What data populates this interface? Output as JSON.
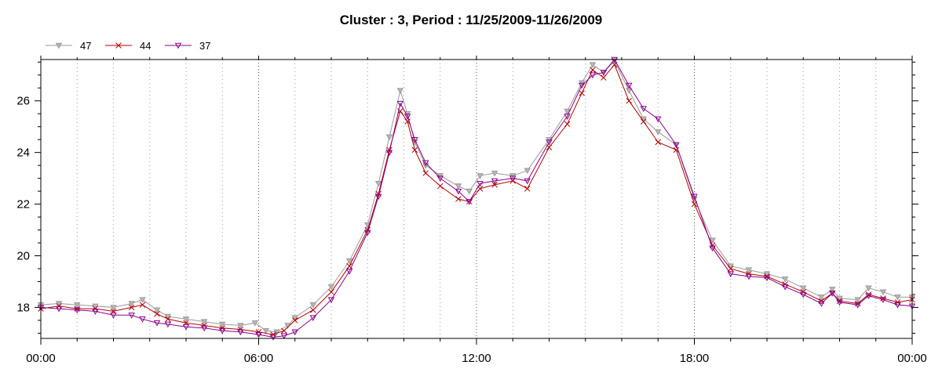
{
  "chart_data": {
    "type": "line",
    "title": "Cluster : 3, Period : 11/25/2009-11/26/2009",
    "xlabel": "",
    "ylabel": "",
    "x_unit": "hours from 00:00",
    "xlim": [
      0,
      24
    ],
    "ylim": [
      16.8,
      27.6
    ],
    "x_ticks": [
      {
        "value": 0,
        "label": "00:00"
      },
      {
        "value": 6,
        "label": "06:00"
      },
      {
        "value": 12,
        "label": "12:00"
      },
      {
        "value": 18,
        "label": "18:00"
      },
      {
        "value": 24,
        "label": "00:00"
      }
    ],
    "y_ticks": [
      {
        "value": 18,
        "label": "18"
      },
      {
        "value": 20,
        "label": "20"
      },
      {
        "value": 22,
        "label": "22"
      },
      {
        "value": 24,
        "label": "24"
      },
      {
        "value": 26,
        "label": "26"
      }
    ],
    "grid": "dotted vertical",
    "legend_position": "top-left",
    "series": [
      {
        "name": "47",
        "color": "#9a9a9a",
        "marker": "triangle-down-filled",
        "points": [
          [
            0,
            18.1
          ],
          [
            0.5,
            18.15
          ],
          [
            1,
            18.1
          ],
          [
            1.5,
            18.05
          ],
          [
            2,
            18.0
          ],
          [
            2.5,
            18.15
          ],
          [
            2.8,
            18.3
          ],
          [
            3.2,
            17.9
          ],
          [
            3.5,
            17.65
          ],
          [
            4,
            17.55
          ],
          [
            4.5,
            17.45
          ],
          [
            5,
            17.35
          ],
          [
            5.5,
            17.3
          ],
          [
            5.9,
            17.4
          ],
          [
            6.2,
            17.1
          ],
          [
            6.5,
            17.05
          ],
          [
            6.8,
            17.3
          ],
          [
            7,
            17.6
          ],
          [
            7.5,
            18.1
          ],
          [
            8,
            18.8
          ],
          [
            8.5,
            19.8
          ],
          [
            9,
            21.2
          ],
          [
            9.3,
            22.8
          ],
          [
            9.6,
            24.6
          ],
          [
            9.9,
            26.4
          ],
          [
            10.1,
            25.5
          ],
          [
            10.3,
            24.4
          ],
          [
            10.6,
            23.5
          ],
          [
            11,
            23.1
          ],
          [
            11.5,
            22.7
          ],
          [
            11.8,
            22.5
          ],
          [
            12.1,
            23.1
          ],
          [
            12.5,
            23.2
          ],
          [
            13,
            23.1
          ],
          [
            13.4,
            23.3
          ],
          [
            14,
            24.5
          ],
          [
            14.5,
            25.6
          ],
          [
            14.9,
            26.7
          ],
          [
            15.2,
            27.4
          ],
          [
            15.5,
            27.1
          ],
          [
            15.8,
            27.55
          ],
          [
            16.2,
            26.4
          ],
          [
            16.6,
            25.3
          ],
          [
            17.0,
            24.8
          ],
          [
            17.5,
            24.3
          ],
          [
            18,
            22.2
          ],
          [
            18.5,
            20.6
          ],
          [
            19,
            19.6
          ],
          [
            19.5,
            19.45
          ],
          [
            20,
            19.3
          ],
          [
            20.5,
            19.1
          ],
          [
            21,
            18.75
          ],
          [
            21.5,
            18.4
          ],
          [
            21.8,
            18.7
          ],
          [
            22,
            18.35
          ],
          [
            22.5,
            18.3
          ],
          [
            22.8,
            18.75
          ],
          [
            23.2,
            18.6
          ],
          [
            23.6,
            18.4
          ],
          [
            24,
            18.4
          ]
        ]
      },
      {
        "name": "44",
        "color": "#b30000",
        "marker": "x",
        "points": [
          [
            0,
            17.95
          ],
          [
            0.5,
            18.05
          ],
          [
            1,
            17.95
          ],
          [
            1.5,
            17.95
          ],
          [
            2,
            17.85
          ],
          [
            2.5,
            18.0
          ],
          [
            2.8,
            18.1
          ],
          [
            3.2,
            17.75
          ],
          [
            3.5,
            17.55
          ],
          [
            4,
            17.4
          ],
          [
            4.5,
            17.3
          ],
          [
            5,
            17.2
          ],
          [
            5.5,
            17.15
          ],
          [
            6,
            17.05
          ],
          [
            6.4,
            16.95
          ],
          [
            6.7,
            17.1
          ],
          [
            7,
            17.5
          ],
          [
            7.5,
            17.9
          ],
          [
            8,
            18.6
          ],
          [
            8.5,
            19.6
          ],
          [
            9,
            21.0
          ],
          [
            9.3,
            22.4
          ],
          [
            9.6,
            24.1
          ],
          [
            9.9,
            25.6
          ],
          [
            10.1,
            25.2
          ],
          [
            10.3,
            24.1
          ],
          [
            10.6,
            23.2
          ],
          [
            11,
            22.7
          ],
          [
            11.5,
            22.2
          ],
          [
            11.8,
            22.1
          ],
          [
            12.1,
            22.6
          ],
          [
            12.5,
            22.75
          ],
          [
            13,
            22.9
          ],
          [
            13.4,
            22.6
          ],
          [
            14,
            24.2
          ],
          [
            14.5,
            25.1
          ],
          [
            14.9,
            26.3
          ],
          [
            15.2,
            27.2
          ],
          [
            15.5,
            26.9
          ],
          [
            15.8,
            27.4
          ],
          [
            16.2,
            26.0
          ],
          [
            16.6,
            25.2
          ],
          [
            17.0,
            24.4
          ],
          [
            17.5,
            24.1
          ],
          [
            18,
            22.0
          ],
          [
            18.5,
            20.4
          ],
          [
            19,
            19.5
          ],
          [
            19.5,
            19.3
          ],
          [
            20,
            19.2
          ],
          [
            20.5,
            18.9
          ],
          [
            21,
            18.6
          ],
          [
            21.5,
            18.25
          ],
          [
            21.8,
            18.55
          ],
          [
            22,
            18.25
          ],
          [
            22.5,
            18.15
          ],
          [
            22.8,
            18.5
          ],
          [
            23.2,
            18.35
          ],
          [
            23.6,
            18.2
          ],
          [
            24,
            18.3
          ]
        ]
      },
      {
        "name": "37",
        "color": "#8b008b",
        "marker": "triangle-down-open",
        "points": [
          [
            0,
            18.0
          ],
          [
            0.5,
            17.95
          ],
          [
            1,
            17.9
          ],
          [
            1.5,
            17.85
          ],
          [
            2,
            17.7
          ],
          [
            2.5,
            17.7
          ],
          [
            2.8,
            17.55
          ],
          [
            3.2,
            17.4
          ],
          [
            3.5,
            17.35
          ],
          [
            4,
            17.25
          ],
          [
            4.5,
            17.2
          ],
          [
            5,
            17.1
          ],
          [
            5.5,
            17.05
          ],
          [
            6,
            16.95
          ],
          [
            6.4,
            16.85
          ],
          [
            6.7,
            16.9
          ],
          [
            7,
            17.05
          ],
          [
            7.5,
            17.6
          ],
          [
            8,
            18.3
          ],
          [
            8.5,
            19.4
          ],
          [
            9,
            20.9
          ],
          [
            9.3,
            22.3
          ],
          [
            9.6,
            24.0
          ],
          [
            9.9,
            25.9
          ],
          [
            10.1,
            25.4
          ],
          [
            10.3,
            24.5
          ],
          [
            10.6,
            23.6
          ],
          [
            11,
            23.0
          ],
          [
            11.5,
            22.5
          ],
          [
            11.8,
            22.1
          ],
          [
            12.1,
            22.8
          ],
          [
            12.5,
            22.9
          ],
          [
            13,
            23.0
          ],
          [
            13.4,
            22.9
          ],
          [
            14,
            24.4
          ],
          [
            14.5,
            25.4
          ],
          [
            14.9,
            26.6
          ],
          [
            15.2,
            27.0
          ],
          [
            15.5,
            27.1
          ],
          [
            15.8,
            27.6
          ],
          [
            16.2,
            26.6
          ],
          [
            16.6,
            25.7
          ],
          [
            17.0,
            25.3
          ],
          [
            17.5,
            24.3
          ],
          [
            18,
            22.3
          ],
          [
            18.5,
            20.3
          ],
          [
            19,
            19.3
          ],
          [
            19.5,
            19.2
          ],
          [
            20,
            19.15
          ],
          [
            20.5,
            18.8
          ],
          [
            21,
            18.5
          ],
          [
            21.5,
            18.15
          ],
          [
            21.8,
            18.55
          ],
          [
            22,
            18.2
          ],
          [
            22.5,
            18.1
          ],
          [
            22.8,
            18.45
          ],
          [
            23.2,
            18.3
          ],
          [
            23.6,
            18.1
          ],
          [
            24,
            18.05
          ]
        ]
      }
    ]
  }
}
